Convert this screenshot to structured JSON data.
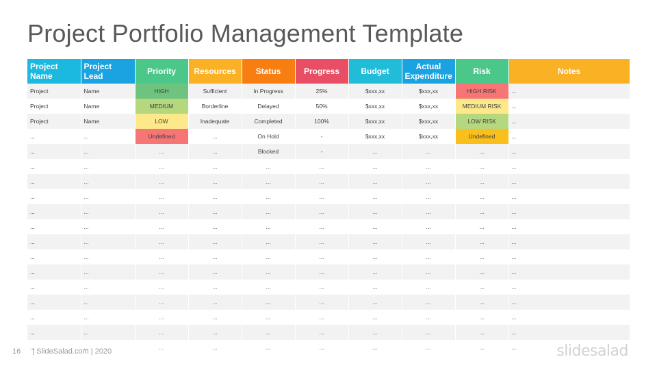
{
  "title": "Project Portfolio Management Template",
  "columns": [
    {
      "label": "Project Name",
      "color": "#1bb8e0",
      "align": "left"
    },
    {
      "label": "Project Lead",
      "color": "#1aa3e0",
      "align": "left"
    },
    {
      "label": "Priority",
      "color": "#4cc78a",
      "align": "center"
    },
    {
      "label": "Resources",
      "color": "#fbb124",
      "align": "center"
    },
    {
      "label": "Status",
      "color": "#f77e10",
      "align": "center"
    },
    {
      "label": "Progress",
      "color": "#e84e64",
      "align": "center"
    },
    {
      "label": "Budget",
      "color": "#21bcd8",
      "align": "center"
    },
    {
      "label": "Actual Expenditure",
      "color": "#1aa3e0",
      "align": "center"
    },
    {
      "label": "Risk",
      "color": "#4cc78a",
      "align": "center"
    },
    {
      "label": "Notes",
      "color": "#fbb124",
      "align": "center"
    }
  ],
  "cell_colors": {
    "HIGH": "#6ec37e",
    "MEDIUM": "#b5d77d",
    "LOW": "#fde98a",
    "Undefined": "#f77574",
    "HIGH RISK": "#f77574",
    "MEDIUM RISK": "#fde98a",
    "LOW RISK": "#b5d77d",
    "Undefined risk": "#fbbf1c"
  },
  "rows": [
    [
      {
        "t": "Project"
      },
      {
        "t": "Name"
      },
      {
        "t": "HIGH",
        "c": "HIGH"
      },
      {
        "t": "Sufficient"
      },
      {
        "t": "In Progress"
      },
      {
        "t": "25%"
      },
      {
        "t": "$xxx,xx"
      },
      {
        "t": "$xxx,xx"
      },
      {
        "t": "HIGH RISK",
        "c": "HIGH RISK"
      },
      {
        "t": "..."
      }
    ],
    [
      {
        "t": "Project"
      },
      {
        "t": "Name"
      },
      {
        "t": "MEDIUM",
        "c": "MEDIUM"
      },
      {
        "t": "Borderline"
      },
      {
        "t": "Delayed"
      },
      {
        "t": "50%"
      },
      {
        "t": "$xxx,xx"
      },
      {
        "t": "$xxx,xx"
      },
      {
        "t": "MEDIUM RISK",
        "c": "MEDIUM RISK"
      },
      {
        "t": "..."
      }
    ],
    [
      {
        "t": "Project"
      },
      {
        "t": "Name"
      },
      {
        "t": "LOW",
        "c": "LOW"
      },
      {
        "t": "Inadequate"
      },
      {
        "t": "Completed"
      },
      {
        "t": "100%"
      },
      {
        "t": "$xxx,xx"
      },
      {
        "t": "$xxx,xx"
      },
      {
        "t": "LOW RISK",
        "c": "LOW RISK"
      },
      {
        "t": "..."
      }
    ],
    [
      {
        "t": "..."
      },
      {
        "t": "..."
      },
      {
        "t": "Undefined",
        "c": "Undefined"
      },
      {
        "t": "..."
      },
      {
        "t": "On Hold"
      },
      {
        "t": "-"
      },
      {
        "t": "$xxx,xx"
      },
      {
        "t": "$xxx,xx"
      },
      {
        "t": "Undefined",
        "c": "Undefined risk"
      },
      {
        "t": "..."
      }
    ],
    [
      {
        "t": "..."
      },
      {
        "t": "..."
      },
      {
        "t": "..."
      },
      {
        "t": "..."
      },
      {
        "t": "Blocked"
      },
      {
        "t": "-"
      },
      {
        "t": "..."
      },
      {
        "t": "..."
      },
      {
        "t": "..."
      },
      {
        "t": "..."
      }
    ],
    [
      {
        "t": "..."
      },
      {
        "t": "..."
      },
      {
        "t": "..."
      },
      {
        "t": "..."
      },
      {
        "t": "..."
      },
      {
        "t": "..."
      },
      {
        "t": "..."
      },
      {
        "t": "..."
      },
      {
        "t": "..."
      },
      {
        "t": "..."
      }
    ],
    [
      {
        "t": "..."
      },
      {
        "t": "..."
      },
      {
        "t": "..."
      },
      {
        "t": "..."
      },
      {
        "t": "..."
      },
      {
        "t": "..."
      },
      {
        "t": "..."
      },
      {
        "t": "..."
      },
      {
        "t": "..."
      },
      {
        "t": "..."
      }
    ],
    [
      {
        "t": "..."
      },
      {
        "t": "..."
      },
      {
        "t": "..."
      },
      {
        "t": "..."
      },
      {
        "t": "..."
      },
      {
        "t": "..."
      },
      {
        "t": "..."
      },
      {
        "t": "..."
      },
      {
        "t": "..."
      },
      {
        "t": "..."
      }
    ],
    [
      {
        "t": "..."
      },
      {
        "t": "..."
      },
      {
        "t": "..."
      },
      {
        "t": "..."
      },
      {
        "t": "..."
      },
      {
        "t": "..."
      },
      {
        "t": "..."
      },
      {
        "t": "..."
      },
      {
        "t": "..."
      },
      {
        "t": "..."
      }
    ],
    [
      {
        "t": "..."
      },
      {
        "t": "..."
      },
      {
        "t": "..."
      },
      {
        "t": "..."
      },
      {
        "t": "..."
      },
      {
        "t": "..."
      },
      {
        "t": "..."
      },
      {
        "t": "..."
      },
      {
        "t": "..."
      },
      {
        "t": "..."
      }
    ],
    [
      {
        "t": "..."
      },
      {
        "t": "..."
      },
      {
        "t": "..."
      },
      {
        "t": "..."
      },
      {
        "t": "..."
      },
      {
        "t": "..."
      },
      {
        "t": "..."
      },
      {
        "t": "..."
      },
      {
        "t": "..."
      },
      {
        "t": "..."
      }
    ],
    [
      {
        "t": "..."
      },
      {
        "t": "..."
      },
      {
        "t": "..."
      },
      {
        "t": "..."
      },
      {
        "t": "..."
      },
      {
        "t": "..."
      },
      {
        "t": "..."
      },
      {
        "t": "..."
      },
      {
        "t": "..."
      },
      {
        "t": "..."
      }
    ],
    [
      {
        "t": "..."
      },
      {
        "t": "..."
      },
      {
        "t": "..."
      },
      {
        "t": "..."
      },
      {
        "t": "..."
      },
      {
        "t": "..."
      },
      {
        "t": "..."
      },
      {
        "t": "..."
      },
      {
        "t": "..."
      },
      {
        "t": "..."
      }
    ],
    [
      {
        "t": "..."
      },
      {
        "t": "..."
      },
      {
        "t": "..."
      },
      {
        "t": "..."
      },
      {
        "t": "..."
      },
      {
        "t": "..."
      },
      {
        "t": "..."
      },
      {
        "t": "..."
      },
      {
        "t": "..."
      },
      {
        "t": "..."
      }
    ],
    [
      {
        "t": "..."
      },
      {
        "t": "..."
      },
      {
        "t": "..."
      },
      {
        "t": "..."
      },
      {
        "t": "..."
      },
      {
        "t": "..."
      },
      {
        "t": "..."
      },
      {
        "t": "..."
      },
      {
        "t": "..."
      },
      {
        "t": "..."
      }
    ],
    [
      {
        "t": "..."
      },
      {
        "t": "..."
      },
      {
        "t": "..."
      },
      {
        "t": "..."
      },
      {
        "t": "..."
      },
      {
        "t": "..."
      },
      {
        "t": "..."
      },
      {
        "t": "..."
      },
      {
        "t": "..."
      },
      {
        "t": "..."
      }
    ],
    [
      {
        "t": "..."
      },
      {
        "t": "..."
      },
      {
        "t": "..."
      },
      {
        "t": "..."
      },
      {
        "t": "..."
      },
      {
        "t": "..."
      },
      {
        "t": "..."
      },
      {
        "t": "..."
      },
      {
        "t": "..."
      },
      {
        "t": "..."
      }
    ],
    [
      {
        "t": "..."
      },
      {
        "t": "..."
      },
      {
        "t": "..."
      },
      {
        "t": "..."
      },
      {
        "t": "..."
      },
      {
        "t": "..."
      },
      {
        "t": "..."
      },
      {
        "t": "..."
      },
      {
        "t": "..."
      },
      {
        "t": "..."
      }
    ]
  ],
  "footer": {
    "page_number": "16",
    "source": "| SlideSalad.com | 2020"
  },
  "logo_text": "slidesalad"
}
